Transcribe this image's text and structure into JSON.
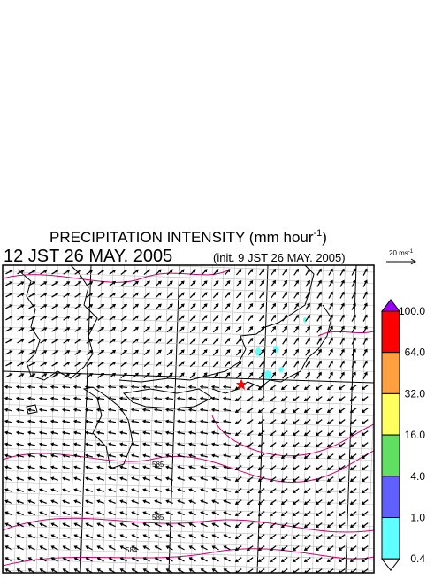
{
  "header": {
    "title": "PRECIPITATION INTENSITY (mm hour",
    "title_exp": "-1",
    "title_end": ")",
    "valid_time": "12 JST 26 MAY. 2005",
    "init_time": "(init. 9 JST 26 MAY. 2005)"
  },
  "reference_vector": {
    "label": "20 ms",
    "label_exp": "-1"
  },
  "colorbar": {
    "labels": [
      "100.0",
      "64.0",
      "32.0",
      "16.0",
      "4.0",
      "1.0",
      "0.4"
    ],
    "colors": [
      "#9b00ff",
      "#ff0000",
      "#ffa040",
      "#ffff60",
      "#60e060",
      "#6060ff",
      "#60ffff",
      "#ffffff"
    ]
  },
  "contour_labels": [
    "585",
    "585",
    "584"
  ]
}
